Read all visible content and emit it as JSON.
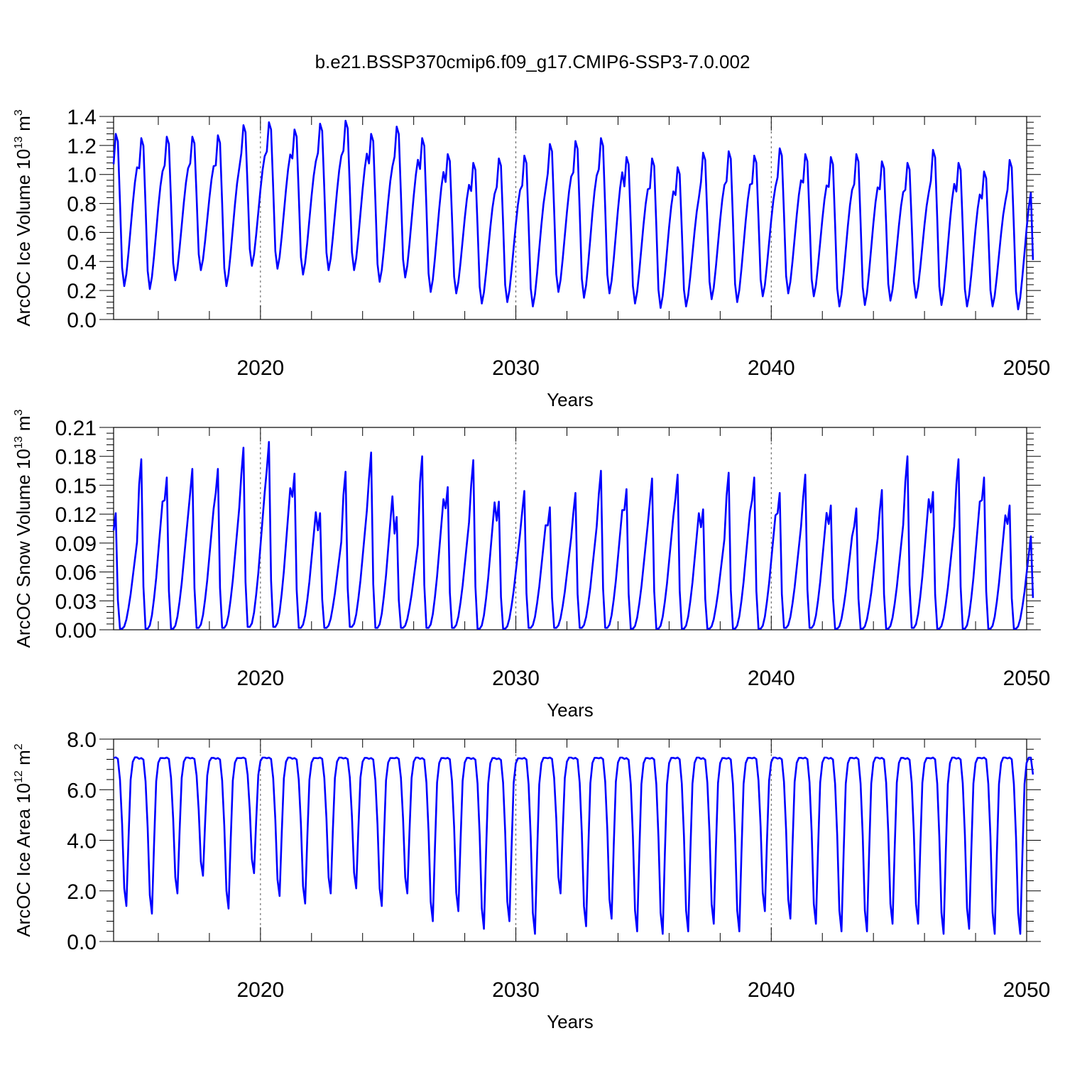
{
  "figure_title": "b.e21.BSSP370cmip6.f09_g17.CMIP6-SSP3-7.0.002",
  "colors": {
    "series": "#0000ff",
    "axis": "#000000",
    "grid": "#555555"
  },
  "chart_data": [
    {
      "type": "line",
      "title": "",
      "ylabel": "ArcOC Ice Volume 10",
      "ylabel_exp": "13",
      "ylabel_unit": "m",
      "ylabel_unit_exp": "3",
      "xlabel": "Years",
      "xlim": [
        2014.25,
        2050.0
      ],
      "ylim": [
        0.0,
        1.4
      ],
      "xticks": [
        2020,
        2030,
        2040,
        2050
      ],
      "xtick_labels": [
        "2020",
        "2030",
        "2040",
        "2050"
      ],
      "yticks": [
        0.0,
        0.2,
        0.4,
        0.6,
        0.8,
        1.0,
        1.2,
        1.4
      ],
      "ytick_labels": [
        "0.0",
        "0.2",
        "0.4",
        "0.6",
        "0.8",
        "1.0",
        "1.2",
        "1.4"
      ],
      "vertical_reference_lines": [
        2020,
        2030,
        2040
      ],
      "grid": false,
      "series": [
        {
          "x_start": 2014.25,
          "x_step": 0.08333,
          "annual_min": [
            0.23,
            0.21,
            0.27,
            0.34,
            0.23,
            0.37,
            0.35,
            0.31,
            0.34,
            0.34,
            0.26,
            0.29,
            0.19,
            0.18,
            0.11,
            0.12,
            0.09,
            0.19,
            0.15,
            0.18,
            0.11,
            0.08,
            0.09,
            0.14,
            0.12,
            0.16,
            0.18,
            0.16,
            0.09,
            0.1,
            0.13,
            0.15,
            0.1,
            0.09,
            0.09,
            0.07
          ],
          "annual_max": [
            1.28,
            1.25,
            1.26,
            1.26,
            1.27,
            1.34,
            1.36,
            1.31,
            1.35,
            1.37,
            1.28,
            1.33,
            1.25,
            1.14,
            1.08,
            1.11,
            1.13,
            1.21,
            1.23,
            1.25,
            1.12,
            1.11,
            1.05,
            1.15,
            1.16,
            1.13,
            1.18,
            1.14,
            1.12,
            1.14,
            1.09,
            1.08,
            1.17,
            1.08,
            1.02,
            1.1
          ],
          "end_value": 0.41
        }
      ]
    },
    {
      "type": "line",
      "title": "",
      "ylabel": "ArcOC Snow Volume 10",
      "ylabel_exp": "13",
      "ylabel_unit": "m",
      "ylabel_unit_exp": "3",
      "xlabel": "Years",
      "xlim": [
        2014.25,
        2050.0
      ],
      "ylim": [
        0.0,
        0.21
      ],
      "xticks": [
        2020,
        2030,
        2040,
        2050
      ],
      "xtick_labels": [
        "2020",
        "2030",
        "2040",
        "2050"
      ],
      "yticks": [
        0.0,
        0.03,
        0.06,
        0.09,
        0.12,
        0.15,
        0.18,
        0.21
      ],
      "ytick_labels": [
        "0.00",
        "0.03",
        "0.06",
        "0.09",
        "0.12",
        "0.15",
        "0.18",
        "0.21"
      ],
      "vertical_reference_lines": [
        2020,
        2030,
        2040
      ],
      "grid": false,
      "series": [
        {
          "x_start": 2014.25,
          "x_step": 0.08333,
          "annual_min": [
            0.001,
            0.001,
            0.001,
            0.002,
            0.002,
            0.003,
            0.003,
            0.002,
            0.002,
            0.003,
            0.002,
            0.002,
            0.002,
            0.002,
            0.001,
            0.001,
            0.002,
            0.002,
            0.002,
            0.002,
            0.001,
            0.001,
            0.001,
            0.001,
            0.001,
            0.001,
            0.002,
            0.002,
            0.001,
            0.001,
            0.001,
            0.002,
            0.001,
            0.001,
            0.001,
            0.001
          ],
          "annual_max": [
            0.121,
            0.177,
            0.158,
            0.167,
            0.167,
            0.189,
            0.195,
            0.162,
            0.121,
            0.164,
            0.184,
            0.117,
            0.18,
            0.148,
            0.176,
            0.133,
            0.144,
            0.127,
            0.142,
            0.165,
            0.146,
            0.157,
            0.161,
            0.125,
            0.163,
            0.158,
            0.142,
            0.161,
            0.129,
            0.126,
            0.145,
            0.18,
            0.143,
            0.177,
            0.158,
            0.129
          ],
          "end_value": 0.033
        }
      ]
    },
    {
      "type": "line",
      "title": "",
      "ylabel": "ArcOC Ice Area 10",
      "ylabel_exp": "12",
      "ylabel_unit": "m",
      "ylabel_unit_exp": "2",
      "xlabel": "Years",
      "xlim": [
        2014.25,
        2050.0
      ],
      "ylim": [
        0.0,
        8.0
      ],
      "xticks": [
        2020,
        2030,
        2040,
        2050
      ],
      "xtick_labels": [
        "2020",
        "2030",
        "2040",
        "2050"
      ],
      "yticks": [
        0.0,
        2.0,
        4.0,
        6.0,
        8.0
      ],
      "ytick_labels": [
        "0.0",
        "2.0",
        "4.0",
        "6.0",
        "8.0"
      ],
      "vertical_reference_lines": [
        2020,
        2030,
        2040
      ],
      "grid": false,
      "series": [
        {
          "x_start": 2014.25,
          "x_step": 0.08333,
          "annual_min": [
            1.4,
            1.1,
            1.9,
            2.6,
            1.3,
            2.7,
            1.8,
            1.5,
            1.9,
            2.1,
            1.4,
            1.9,
            0.8,
            1.2,
            0.5,
            0.8,
            0.3,
            1.9,
            0.6,
            0.9,
            0.4,
            0.3,
            0.4,
            0.7,
            0.4,
            1.2,
            0.9,
            0.7,
            0.4,
            0.4,
            0.7,
            0.7,
            0.3,
            0.5,
            0.3,
            0.3
          ],
          "annual_max": [
            7.28,
            7.25,
            7.27,
            7.26,
            7.25,
            7.27,
            7.27,
            7.25,
            7.27,
            7.26,
            7.25,
            7.27,
            7.25,
            7.26,
            7.25,
            7.24,
            7.26,
            7.27,
            7.26,
            7.27,
            7.25,
            7.26,
            7.27,
            7.25,
            7.26,
            7.27,
            7.26,
            7.27,
            7.26,
            7.27,
            7.26,
            7.25,
            7.27,
            7.26,
            7.27,
            7.27
          ],
          "end_value": 6.6
        }
      ]
    }
  ]
}
